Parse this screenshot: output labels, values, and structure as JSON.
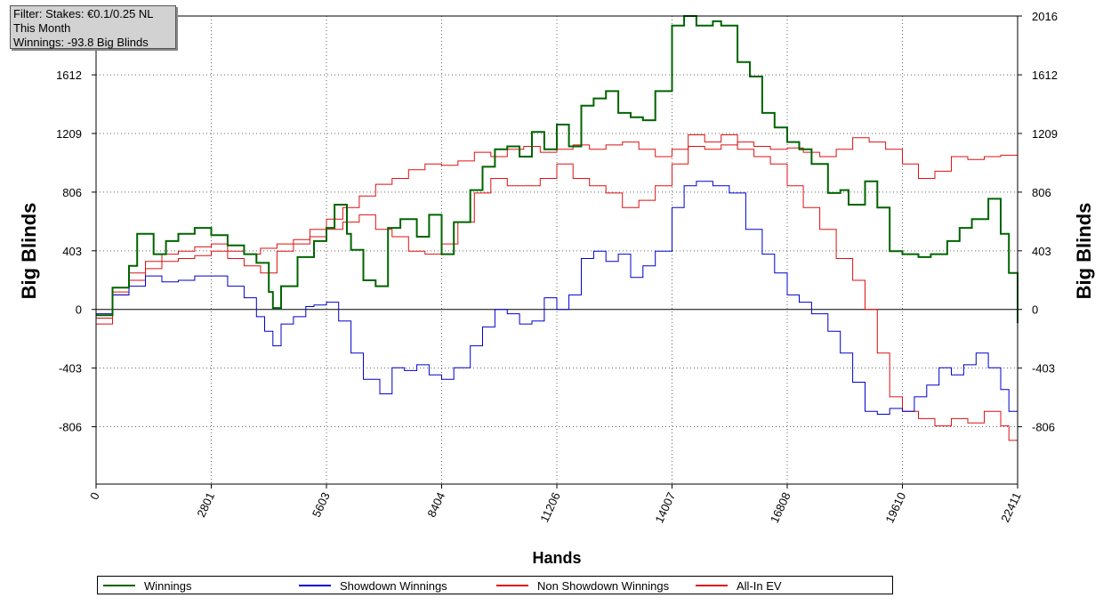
{
  "filter_box": {
    "line1": "Filter: Stakes: €0.1/0.25 NL",
    "line2": "This Month",
    "line3": "Winnings: -93.8 Big Blinds"
  },
  "chart_data": {
    "type": "line",
    "xlabel": "Hands",
    "ylabel": "Big Blinds",
    "xlim": [
      0,
      22411
    ],
    "ylim": [
      -1200,
      2016
    ],
    "x_ticks": [
      "0",
      "2801",
      "5603",
      "8404",
      "11206",
      "14007",
      "16808",
      "19610",
      "22411"
    ],
    "y_ticks": [
      "2016",
      "1612",
      "1209",
      "806",
      "403",
      "0",
      "-403",
      "-806"
    ],
    "grid": true,
    "legend_position": "bottom",
    "series": [
      {
        "name": "Winnings",
        "color": "#006400",
        "x": [
          0,
          400,
          800,
          1000,
          1400,
          1700,
          2000,
          2400,
          2801,
          3200,
          3600,
          3900,
          4200,
          4300,
          4500,
          4900,
          5300,
          5603,
          5800,
          6100,
          6200,
          6500,
          6800,
          7100,
          7400,
          7800,
          8100,
          8404,
          8700,
          9100,
          9400,
          9700,
          10000,
          10300,
          10600,
          10900,
          11206,
          11500,
          11800,
          12100,
          12400,
          12700,
          13000,
          13300,
          13600,
          14007,
          14300,
          14600,
          15000,
          15200,
          15600,
          15900,
          16200,
          16500,
          16808,
          17100,
          17400,
          17800,
          18100,
          18300,
          18700,
          19000,
          19300,
          19610,
          20000,
          20300,
          20700,
          21000,
          21300,
          21700,
          22000,
          22200,
          22411
        ],
        "y": [
          -40,
          150,
          300,
          520,
          380,
          470,
          520,
          560,
          510,
          440,
          380,
          320,
          120,
          10,
          160,
          360,
          470,
          560,
          720,
          520,
          410,
          200,
          160,
          560,
          620,
          500,
          650,
          380,
          600,
          820,
          980,
          1100,
          1120,
          1050,
          1220,
          1100,
          1270,
          1120,
          1400,
          1450,
          1500,
          1350,
          1320,
          1300,
          1500,
          1950,
          2016,
          1950,
          1980,
          1950,
          1700,
          1600,
          1350,
          1250,
          1150,
          1100,
          1000,
          800,
          820,
          720,
          880,
          700,
          400,
          380,
          360,
          380,
          470,
          560,
          620,
          760,
          520,
          250,
          -94
        ]
      },
      {
        "name": "Showdown Winnings",
        "color": "#0000cc",
        "x": [
          0,
          400,
          800,
          1200,
          1600,
          2000,
          2400,
          2801,
          3200,
          3600,
          3900,
          4100,
          4300,
          4500,
          4800,
          5100,
          5300,
          5603,
          5900,
          6200,
          6500,
          6900,
          7200,
          7500,
          7800,
          8100,
          8404,
          8700,
          9100,
          9400,
          9700,
          10000,
          10300,
          10600,
          10900,
          11206,
          11500,
          11800,
          12100,
          12400,
          12700,
          13000,
          13300,
          13600,
          14007,
          14300,
          14600,
          15000,
          15400,
          15800,
          16200,
          16500,
          16808,
          17100,
          17400,
          17800,
          18100,
          18400,
          18700,
          19000,
          19300,
          19610,
          19900,
          20200,
          20500,
          20800,
          21100,
          21400,
          21700,
          22000,
          22200,
          22411
        ],
        "y": [
          -30,
          100,
          160,
          230,
          190,
          200,
          230,
          230,
          160,
          80,
          -50,
          -150,
          -250,
          -100,
          -50,
          20,
          30,
          50,
          -80,
          -300,
          -480,
          -580,
          -400,
          -420,
          -380,
          -450,
          -480,
          -400,
          -250,
          -120,
          0,
          -30,
          -100,
          -80,
          80,
          0,
          100,
          350,
          400,
          330,
          380,
          220,
          300,
          400,
          700,
          850,
          880,
          850,
          800,
          550,
          380,
          250,
          100,
          50,
          -30,
          -150,
          -300,
          -500,
          -700,
          -720,
          -680,
          -700,
          -600,
          -520,
          -400,
          -450,
          -380,
          -300,
          -400,
          -550,
          -700,
          -1000
        ]
      },
      {
        "name": "Non Showdown Winnings",
        "color": "#dd1111",
        "x": [
          0,
          400,
          800,
          1200,
          1600,
          2000,
          2400,
          2801,
          3200,
          3600,
          4000,
          4400,
          4800,
          5200,
          5603,
          6000,
          6400,
          6800,
          7200,
          7600,
          8000,
          8404,
          8800,
          9200,
          9600,
          10000,
          10400,
          10800,
          11206,
          11600,
          12000,
          12400,
          12800,
          13200,
          13600,
          14007,
          14400,
          14800,
          15200,
          15600,
          16000,
          16400,
          16808,
          17200,
          17600,
          18000,
          18400,
          18700,
          19000,
          19300,
          19610,
          20000,
          20400,
          20800,
          21200,
          21600,
          22000,
          22200,
          22411
        ],
        "y": [
          -100,
          100,
          200,
          280,
          330,
          350,
          370,
          400,
          350,
          300,
          250,
          400,
          450,
          500,
          550,
          600,
          650,
          550,
          500,
          400,
          380,
          450,
          600,
          800,
          900,
          850,
          850,
          900,
          1000,
          900,
          850,
          800,
          700,
          750,
          850,
          1000,
          1200,
          1150,
          1200,
          1100,
          1050,
          1000,
          850,
          700,
          550,
          350,
          200,
          0,
          -300,
          -600,
          -700,
          -750,
          -800,
          -750,
          -780,
          -700,
          -800,
          -900,
          -1100
        ]
      },
      {
        "name": "All-In EV",
        "color": "#dd1111",
        "x": [
          0,
          400,
          800,
          1200,
          1600,
          2000,
          2400,
          2801,
          3200,
          3600,
          4000,
          4400,
          4800,
          5200,
          5603,
          6000,
          6400,
          6800,
          7200,
          7600,
          8000,
          8404,
          8800,
          9200,
          9600,
          10000,
          10400,
          10800,
          11206,
          11600,
          12000,
          12400,
          12800,
          13200,
          13600,
          14007,
          14400,
          14800,
          15200,
          15600,
          16000,
          16400,
          16808,
          17200,
          17600,
          18000,
          18400,
          18800,
          19200,
          19610,
          20000,
          20400,
          20800,
          21200,
          21600,
          22000,
          22411
        ],
        "y": [
          -60,
          120,
          250,
          330,
          380,
          400,
          430,
          450,
          400,
          380,
          420,
          450,
          480,
          550,
          620,
          700,
          780,
          860,
          900,
          960,
          1000,
          990,
          1020,
          1080,
          1050,
          1100,
          1120,
          1080,
          1100,
          1130,
          1100,
          1130,
          1150,
          1100,
          1050,
          1100,
          1120,
          1100,
          1130,
          1150,
          1120,
          1100,
          1110,
          1080,
          1050,
          1100,
          1180,
          1150,
          1100,
          1000,
          900,
          950,
          1050,
          1030,
          1050,
          1060,
          1050
        ]
      }
    ]
  },
  "legend": {
    "items": [
      {
        "label": "Winnings",
        "color": "#006400"
      },
      {
        "label": "Showdown Winnings",
        "color": "#0000cc"
      },
      {
        "label": "Non Showdown Winnings",
        "color": "#dd1111"
      },
      {
        "label": "All-In EV",
        "color": "#dd1111"
      }
    ]
  }
}
